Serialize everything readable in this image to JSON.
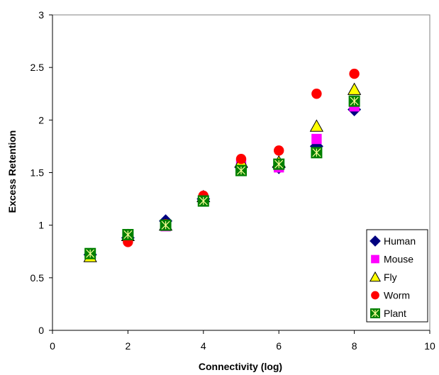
{
  "chart_data": {
    "type": "scatter",
    "xlabel": "Connectivity (log)",
    "ylabel": "Excess Retention",
    "xlim": [
      0,
      10
    ],
    "ylim": [
      0,
      3
    ],
    "xticks": [
      "0",
      "2",
      "4",
      "6",
      "8",
      "10"
    ],
    "yticks": [
      "0",
      "0.5",
      "1",
      "1.5",
      "2",
      "2.5",
      "3"
    ],
    "grid": false,
    "legend_position": "bottom-right",
    "series": [
      {
        "name": "Human",
        "marker": "diamond",
        "color": "#000080",
        "x": [
          1,
          2,
          3,
          4,
          5,
          6,
          7,
          8
        ],
        "y": [
          0.72,
          0.88,
          1.04,
          1.25,
          1.55,
          1.55,
          1.75,
          2.1
        ]
      },
      {
        "name": "Mouse",
        "marker": "square",
        "color": "#ff00ff",
        "x": [
          1,
          2,
          3,
          4,
          5,
          6,
          7,
          8
        ],
        "y": [
          0.72,
          0.9,
          0.99,
          1.24,
          1.58,
          1.55,
          1.82,
          2.13
        ]
      },
      {
        "name": "Fly",
        "marker": "triangle",
        "color": "#ffff00",
        "x": [
          1,
          2,
          3,
          4,
          5,
          6,
          7,
          8
        ],
        "y": [
          0.7,
          0.9,
          1.0,
          1.27,
          1.6,
          1.6,
          1.94,
          2.29
        ]
      },
      {
        "name": "Worm",
        "marker": "circle",
        "color": "#ff0000",
        "x": [
          1,
          2,
          3,
          4,
          5,
          6,
          7,
          8
        ],
        "y": [
          0.73,
          0.84,
          1.01,
          1.28,
          1.63,
          1.71,
          2.25,
          2.44
        ]
      },
      {
        "name": "Plant",
        "marker": "square-star",
        "color": "#008000",
        "x": [
          1,
          2,
          3,
          4,
          5,
          6,
          7,
          8
        ],
        "y": [
          0.73,
          0.91,
          1.0,
          1.23,
          1.52,
          1.58,
          1.69,
          2.18
        ]
      }
    ]
  }
}
